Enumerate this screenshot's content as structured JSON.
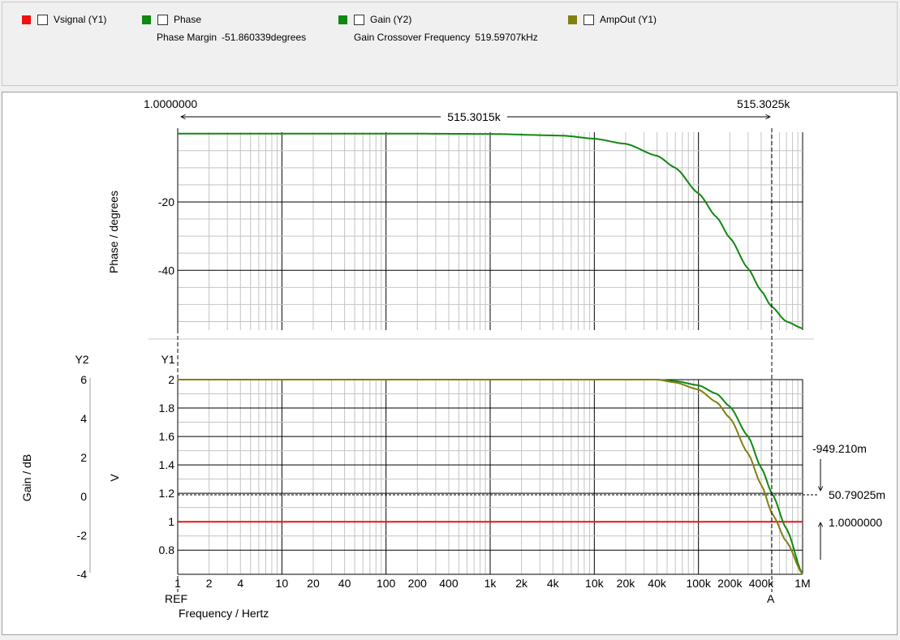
{
  "legend": {
    "items": [
      {
        "label": "Vsignal (Y1)",
        "color": "#ee1111"
      },
      {
        "label": "Phase",
        "color": "#118811"
      },
      {
        "label": "Gain (Y2)",
        "color": "#118811"
      },
      {
        "label": "AmpOut (Y1)",
        "color": "#808011"
      }
    ],
    "phase_margin": {
      "label": "Phase Margin",
      "value": "-51.860339degrees"
    },
    "crossover": {
      "label": "Gain Crossover Frequency",
      "value": "519.59707kHz"
    }
  },
  "cursor": {
    "left_value": "1.0000000",
    "right_value": "515.3025k",
    "delta_value": "515.3015k",
    "ref_label": "REF",
    "a_label": "A",
    "readouts": [
      "-949.210m",
      "50.79025m",
      "1.0000000"
    ]
  },
  "chart_data": [
    {
      "type": "line",
      "ylabel": "Phase / degrees",
      "xscale": "log",
      "xlim": [
        1,
        1000000
      ],
      "ylim": [
        -57.5,
        0.4
      ],
      "yticks": [
        -20,
        -40
      ],
      "grid": true,
      "series": [
        {
          "name": "Phase",
          "color": "#118811",
          "x": [
            1,
            10,
            100,
            1000,
            5000,
            10000,
            20000,
            40000,
            60000,
            100000,
            150000,
            200000,
            300000,
            400000,
            500000,
            700000,
            1000000
          ],
          "y": [
            0,
            0,
            0,
            -0.1,
            -0.6,
            -1.5,
            -3,
            -6.5,
            -10,
            -17.5,
            -24.5,
            -30.5,
            -39.5,
            -46,
            -50.5,
            -55,
            -57
          ]
        }
      ]
    },
    {
      "type": "line",
      "xlabel": "Frequency / Hertz",
      "y1label": "V",
      "y2label": "Gain / dB",
      "y1_axis_title": "Y1",
      "y2_axis_title": "Y2",
      "xscale": "log",
      "xlim": [
        1,
        1000000
      ],
      "y1lim": [
        0.63,
        2
      ],
      "y2lim": [
        -4,
        6
      ],
      "xticks": [
        1,
        2,
        4,
        10,
        20,
        40,
        100,
        200,
        400,
        1000,
        2000,
        4000,
        10000,
        20000,
        40000,
        100000,
        200000,
        400000,
        1000000
      ],
      "xticklabels": [
        "1",
        "2",
        "4",
        "10",
        "20",
        "40",
        "100",
        "200",
        "400",
        "1k",
        "2k",
        "4k",
        "10k",
        "20k",
        "40k",
        "100k",
        "200k",
        "400k",
        "1M"
      ],
      "y1ticks": [
        2,
        1.8,
        1.6,
        1.4,
        1.2,
        1,
        0.8
      ],
      "y2ticks": [
        6,
        4,
        2,
        0,
        -2,
        -4
      ],
      "grid": true,
      "series": [
        {
          "name": "Vsignal (Y1)",
          "color": "#ee1111",
          "axis": "y1",
          "x": [
            1,
            1000000
          ],
          "y": [
            1,
            1
          ]
        },
        {
          "name": "Gain (Y2)",
          "color": "#118811",
          "axis": "y1",
          "x": [
            1,
            10000,
            40000,
            60000,
            100000,
            150000,
            200000,
            300000,
            400000,
            515302,
            700000,
            1000000
          ],
          "y": [
            2,
            2,
            2,
            1.99,
            1.96,
            1.9,
            1.81,
            1.6,
            1.38,
            1.19,
            0.95,
            0.63
          ]
        },
        {
          "name": "AmpOut (Y1)",
          "color": "#808011",
          "axis": "y1",
          "x": [
            1,
            10000,
            40000,
            60000,
            100000,
            150000,
            200000,
            300000,
            400000,
            515302,
            700000,
            1000000
          ],
          "y": [
            2,
            2,
            2,
            1.98,
            1.93,
            1.84,
            1.73,
            1.48,
            1.26,
            1.05,
            0.86,
            0.63
          ]
        }
      ]
    }
  ]
}
